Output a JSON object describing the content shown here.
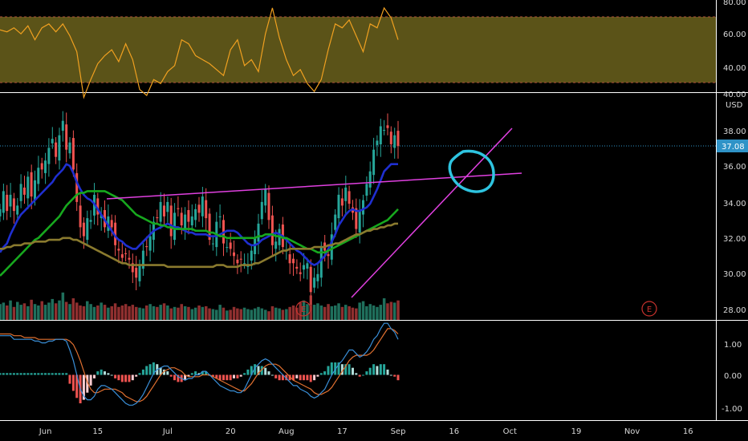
{
  "chart_data": [
    {
      "type": "line",
      "panel": "rsi",
      "ylim": [
        30,
        80
      ],
      "y_ticks": [
        "80.00",
        "60.00",
        "40.00"
      ],
      "band": {
        "upper": 70,
        "lower": 30,
        "color": "#7a6f20"
      },
      "series": [
        {
          "color": "#f0a020",
          "x_days": [
            0,
            2,
            4,
            6,
            8,
            10,
            12,
            14,
            16,
            18,
            20,
            22,
            24,
            26,
            28,
            30,
            32,
            34,
            36,
            38,
            40,
            42,
            44,
            46,
            48,
            50,
            52,
            54,
            56,
            58,
            60,
            62,
            64,
            66,
            68,
            70,
            72,
            74,
            76,
            78,
            80,
            82,
            84,
            86,
            88,
            90,
            92,
            94,
            96,
            98,
            100,
            102,
            104,
            106,
            108,
            110,
            112,
            114
          ],
          "values": [
            65,
            64,
            66,
            63,
            67,
            60,
            66,
            68,
            64,
            68,
            62,
            54,
            31,
            40,
            48,
            52,
            55,
            49,
            58,
            50,
            35,
            32,
            40,
            38,
            44,
            47,
            60,
            58,
            52,
            50,
            48,
            45,
            42,
            55,
            60,
            47,
            50,
            44,
            63,
            76,
            61,
            50,
            42,
            45,
            38,
            34,
            40,
            55,
            68,
            66,
            70,
            62,
            54,
            68,
            66,
            76,
            71,
            60
          ]
        }
      ]
    },
    {
      "type": "candlestick",
      "panel": "price",
      "currency": "USD",
      "ylim": [
        27.5,
        40
      ],
      "y_ticks": [
        "40.00",
        "38.00",
        "36.00",
        "34.00",
        "32.00",
        "30.00",
        "28.00"
      ],
      "last_price": "37.08",
      "x_days": [
        0,
        1,
        2,
        3,
        4,
        5,
        6,
        7,
        8,
        9,
        10,
        11,
        12,
        13,
        14,
        15,
        16,
        17,
        18,
        19,
        20,
        21,
        22,
        23,
        24,
        25,
        26,
        27,
        28,
        29,
        30,
        31,
        32,
        33,
        34,
        35,
        36,
        37,
        38,
        39,
        40,
        41,
        42,
        43,
        44,
        45,
        46,
        47,
        48,
        49,
        50,
        51,
        52,
        53,
        54,
        55,
        56,
        57,
        58,
        59,
        60,
        61,
        62,
        63,
        64,
        65,
        66,
        67,
        68,
        69,
        70,
        71,
        72,
        73,
        74,
        75,
        76,
        77,
        78,
        79,
        80,
        81,
        82,
        83,
        84,
        85,
        86,
        87,
        88,
        89,
        90,
        91,
        92,
        93,
        94,
        95,
        96,
        97,
        98,
        99,
        100,
        101,
        102,
        103,
        104,
        105,
        106,
        107,
        108,
        109,
        110,
        111,
        112,
        113,
        114
      ],
      "close": [
        33.6,
        34.6,
        33.5,
        34.4,
        33.5,
        33.8,
        35.0,
        34.4,
        35.4,
        34.3,
        35.2,
        35.9,
        35.8,
        36.3,
        37.0,
        37.5,
        36.5,
        37.7,
        38.5,
        36.9,
        37.3,
        35.8,
        34.0,
        32.6,
        32.1,
        33.1,
        33.0,
        34.4,
        33.3,
        33.3,
        32.6,
        33.2,
        32.6,
        31.6,
        31.3,
        30.9,
        31.1,
        30.8,
        30.1,
        29.8,
        30.5,
        31.3,
        31.5,
        32.1,
        32.9,
        33.1,
        34.0,
        33.2,
        34.0,
        32.1,
        33.4,
        33.6,
        32.7,
        33.3,
        32.9,
        33.2,
        33.6,
        33.4,
        34.3,
        33.1,
        31.9,
        31.7,
        32.9,
        33.2,
        31.7,
        31.5,
        31.4,
        31.0,
        30.6,
        30.8,
        30.6,
        30.5,
        31.3,
        32.0,
        32.8,
        34.0,
        34.7,
        33.0,
        31.6,
        31.8,
        32.5,
        31.5,
        31.3,
        30.6,
        30.6,
        30.3,
        30.0,
        30.5,
        30.6,
        29.0,
        29.8,
        30.0,
        31.5,
        31.3,
        31.0,
        32.2,
        33.3,
        34.4,
        33.8,
        34.8,
        33.9,
        33.4,
        32.5,
        33.5,
        34.1,
        35.0,
        35.7,
        36.9,
        37.4,
        38.2,
        38.0,
        38.1,
        37.2,
        37.7,
        37.1
      ],
      "volume": [
        22,
        24,
        20,
        27,
        18,
        25,
        21,
        23,
        19,
        28,
        22,
        20,
        26,
        21,
        24,
        29,
        23,
        27,
        38,
        25,
        22,
        30,
        24,
        20,
        19,
        26,
        22,
        18,
        20,
        24,
        21,
        17,
        19,
        23,
        18,
        20,
        22,
        19,
        21,
        18,
        17,
        16,
        20,
        22,
        19,
        18,
        21,
        23,
        20,
        16,
        18,
        17,
        22,
        19,
        18,
        15,
        17,
        20,
        18,
        19,
        16,
        15,
        14,
        21,
        17,
        13,
        14,
        18,
        16,
        15,
        17,
        15,
        14,
        16,
        18,
        16,
        14,
        12,
        19,
        17,
        16,
        14,
        15,
        18,
        20,
        17,
        24,
        27,
        22,
        34,
        21,
        23,
        20,
        18,
        22,
        19,
        20,
        23,
        18,
        21,
        19,
        17,
        16,
        24,
        26,
        19,
        22,
        20,
        18,
        21,
        30,
        23,
        25,
        24,
        27
      ],
      "ma_lines": [
        {
          "color": "#1f2fd0",
          "values": [
            31.2,
            31.5,
            31.7,
            32.2,
            32.6,
            33.0,
            33.3,
            33.5,
            33.7,
            33.9,
            34.1,
            34.3,
            34.5,
            34.7,
            34.9,
            35.1,
            35.4,
            35.6,
            35.8,
            36.1,
            36.0,
            35.6,
            35.1,
            34.7,
            34.4,
            34.2,
            34.1,
            33.9,
            33.6,
            33.3,
            33.0,
            32.7,
            32.4,
            32.1,
            31.9,
            31.8,
            31.6,
            31.5,
            31.4,
            31.4,
            31.6,
            31.8,
            32.0,
            32.2,
            32.4,
            32.5,
            32.6,
            32.7,
            32.8,
            32.7,
            32.6,
            32.6,
            32.5,
            32.4,
            32.3,
            32.3,
            32.2,
            32.2,
            32.2,
            32.2,
            32.1,
            32.1,
            32.1,
            32.2,
            32.3,
            32.4,
            32.4,
            32.4,
            32.3,
            32.1,
            31.9,
            31.7,
            31.6,
            31.6,
            31.7,
            31.9,
            32.0,
            32.1,
            32.2,
            32.3,
            32.2,
            32.1,
            31.9,
            31.7,
            31.5,
            31.3,
            31.2,
            31.0,
            30.8,
            30.6,
            30.5,
            30.6,
            30.8,
            31.0,
            31.4,
            31.8,
            32.2,
            32.7,
            33.0,
            33.3,
            33.5,
            33.6,
            33.5,
            33.5,
            33.6,
            33.7,
            33.9,
            34.3,
            34.7,
            35.2,
            35.7,
            35.9,
            36.1,
            36.1,
            36.1
          ]
        },
        {
          "color": "#17a81e",
          "values": [
            29.9,
            30.1,
            30.3,
            30.5,
            30.7,
            30.9,
            31.1,
            31.3,
            31.5,
            31.7,
            31.9,
            32.0,
            32.2,
            32.4,
            32.6,
            32.8,
            33.0,
            33.2,
            33.5,
            33.8,
            34.0,
            34.2,
            34.4,
            34.5,
            34.5,
            34.6,
            34.6,
            34.6,
            34.6,
            34.6,
            34.6,
            34.5,
            34.4,
            34.3,
            34.2,
            34.1,
            33.9,
            33.7,
            33.5,
            33.3,
            33.2,
            33.1,
            33.0,
            32.9,
            32.8,
            32.8,
            32.7,
            32.7,
            32.6,
            32.6,
            32.5,
            32.5,
            32.5,
            32.5,
            32.5,
            32.5,
            32.4,
            32.4,
            32.4,
            32.4,
            32.3,
            32.3,
            32.2,
            32.1,
            32.1,
            32.0,
            32.0,
            32.0,
            32.0,
            32.0,
            32.0,
            32.0,
            32.0,
            32.0,
            32.1,
            32.1,
            32.2,
            32.2,
            32.2,
            32.1,
            32.1,
            32.0,
            32.0,
            31.9,
            31.8,
            31.7,
            31.6,
            31.5,
            31.4,
            31.4,
            31.3,
            31.2,
            31.2,
            31.2,
            31.3,
            31.4,
            31.5,
            31.6,
            31.7,
            31.8,
            31.9,
            32.0,
            32.1,
            32.2,
            32.3,
            32.4,
            32.5,
            32.6,
            32.7,
            32.8,
            32.9,
            33.0,
            33.2,
            33.4,
            33.6
          ]
        },
        {
          "color": "#8a7a2e",
          "values": [
            31.4,
            31.4,
            31.5,
            31.5,
            31.6,
            31.6,
            31.6,
            31.7,
            31.7,
            31.7,
            31.8,
            31.8,
            31.8,
            31.8,
            31.9,
            31.9,
            31.9,
            31.9,
            32.0,
            32.0,
            32.0,
            31.9,
            31.9,
            31.8,
            31.7,
            31.6,
            31.5,
            31.4,
            31.3,
            31.2,
            31.1,
            31.0,
            30.9,
            30.8,
            30.7,
            30.6,
            30.6,
            30.5,
            30.5,
            30.5,
            30.5,
            30.5,
            30.5,
            30.5,
            30.5,
            30.5,
            30.5,
            30.5,
            30.4,
            30.4,
            30.4,
            30.4,
            30.4,
            30.4,
            30.4,
            30.4,
            30.4,
            30.4,
            30.4,
            30.4,
            30.4,
            30.4,
            30.5,
            30.5,
            30.5,
            30.4,
            30.4,
            30.4,
            30.4,
            30.5,
            30.5,
            30.5,
            30.5,
            30.6,
            30.6,
            30.7,
            30.8,
            30.9,
            31.0,
            31.1,
            31.2,
            31.3,
            31.3,
            31.4,
            31.4,
            31.4,
            31.4,
            31.4,
            31.4,
            31.4,
            31.5,
            31.5,
            31.5,
            31.5,
            31.6,
            31.6,
            31.7,
            31.7,
            31.8,
            31.9,
            32.0,
            32.1,
            32.2,
            32.2,
            32.3,
            32.4,
            32.4,
            32.5,
            32.5,
            32.6,
            32.6,
            32.7,
            32.7,
            32.8,
            32.8
          ]
        }
      ],
      "drawings": {
        "trendlines_color": "#e040e0",
        "circle_color": "#2ec4e0",
        "earnings_markers": [
          "E",
          "E"
        ]
      }
    },
    {
      "type": "bar",
      "panel": "macd",
      "ylim": [
        -1.25,
        1.5
      ],
      "y_ticks": [
        "1.00",
        "0.00",
        "-1.00"
      ],
      "macd_color": "#3a8fd8",
      "signal_color": "#e07030",
      "macd": [
        1.1,
        1.1,
        1.1,
        1.1,
        1.0,
        1.0,
        1.0,
        1.0,
        1.0,
        1.0,
        0.95,
        0.95,
        0.9,
        0.9,
        0.95,
        0.95,
        1.0,
        1.0,
        1.0,
        0.95,
        0.7,
        0.4,
        0.0,
        -0.4,
        -0.6,
        -0.7,
        -0.7,
        -0.6,
        -0.4,
        -0.3,
        -0.3,
        -0.35,
        -0.4,
        -0.5,
        -0.6,
        -0.7,
        -0.8,
        -0.85,
        -0.85,
        -0.8,
        -0.7,
        -0.55,
        -0.35,
        -0.15,
        0.05,
        0.15,
        0.2,
        0.25,
        0.25,
        0.15,
        0.05,
        -0.05,
        -0.1,
        -0.15,
        -0.1,
        -0.1,
        0.0,
        0.0,
        0.1,
        0.1,
        0.0,
        -0.1,
        -0.2,
        -0.3,
        -0.35,
        -0.4,
        -0.45,
        -0.45,
        -0.5,
        -0.5,
        -0.4,
        -0.2,
        0.0,
        0.2,
        0.3,
        0.4,
        0.45,
        0.4,
        0.3,
        0.2,
        0.1,
        0.0,
        -0.1,
        -0.2,
        -0.3,
        -0.3,
        -0.4,
        -0.45,
        -0.5,
        -0.6,
        -0.65,
        -0.6,
        -0.5,
        -0.4,
        -0.2,
        0.0,
        0.15,
        0.3,
        0.4,
        0.55,
        0.7,
        0.7,
        0.6,
        0.5,
        0.55,
        0.65,
        0.8,
        1.0,
        1.1,
        1.3,
        1.45,
        1.45,
        1.3,
        1.2,
        1.0
      ],
      "signal": [
        1.15,
        1.15,
        1.15,
        1.15,
        1.1,
        1.1,
        1.1,
        1.05,
        1.05,
        1.05,
        1.05,
        1.0,
        1.0,
        1.0,
        1.0,
        1.0,
        1.0,
        1.0,
        1.0,
        1.0,
        0.95,
        0.85,
        0.65,
        0.4,
        0.1,
        -0.2,
        -0.4,
        -0.5,
        -0.5,
        -0.45,
        -0.4,
        -0.4,
        -0.4,
        -0.4,
        -0.45,
        -0.5,
        -0.6,
        -0.65,
        -0.7,
        -0.75,
        -0.75,
        -0.7,
        -0.6,
        -0.45,
        -0.3,
        -0.15,
        0.0,
        0.1,
        0.15,
        0.2,
        0.2,
        0.15,
        0.1,
        0.0,
        -0.05,
        -0.05,
        -0.05,
        -0.05,
        0.0,
        0.0,
        0.0,
        -0.05,
        -0.1,
        -0.15,
        -0.2,
        -0.25,
        -0.3,
        -0.35,
        -0.4,
        -0.45,
        -0.45,
        -0.35,
        -0.25,
        -0.1,
        0.05,
        0.15,
        0.25,
        0.3,
        0.3,
        0.3,
        0.25,
        0.15,
        0.05,
        -0.05,
        -0.15,
        -0.2,
        -0.25,
        -0.3,
        -0.35,
        -0.4,
        -0.5,
        -0.55,
        -0.55,
        -0.5,
        -0.45,
        -0.35,
        -0.2,
        -0.05,
        0.1,
        0.25,
        0.4,
        0.5,
        0.55,
        0.55,
        0.55,
        0.55,
        0.6,
        0.7,
        0.85,
        1.0,
        1.15,
        1.3,
        1.3,
        1.25,
        1.15
      ],
      "histogram": [
        0.05,
        0.05,
        0.05,
        0.05,
        0.05,
        0.05,
        0.05,
        0.05,
        0.05,
        0.05,
        0.05,
        0.05,
        0.05,
        0.05,
        0.05,
        0.05,
        0.05,
        0.05,
        0.05,
        0.05,
        -0.25,
        -0.45,
        -0.65,
        -0.8,
        -0.7,
        -0.5,
        -0.3,
        -0.1,
        0.1,
        0.15,
        0.1,
        0.05,
        0.0,
        -0.1,
        -0.15,
        -0.2,
        -0.2,
        -0.2,
        -0.15,
        -0.05,
        0.05,
        0.15,
        0.25,
        0.3,
        0.35,
        0.3,
        0.2,
        0.15,
        0.1,
        -0.05,
        -0.15,
        -0.2,
        -0.2,
        -0.15,
        -0.05,
        0.05,
        0.1,
        0.05,
        0.1,
        0.1,
        0.0,
        -0.05,
        -0.1,
        -0.15,
        -0.15,
        -0.15,
        -0.15,
        -0.1,
        -0.1,
        -0.05,
        0.05,
        0.15,
        0.25,
        0.3,
        0.25,
        0.25,
        0.2,
        0.1,
        0.0,
        -0.1,
        -0.15,
        -0.15,
        -0.15,
        -0.15,
        -0.15,
        -0.1,
        -0.15,
        -0.15,
        -0.15,
        -0.2,
        -0.15,
        -0.05,
        0.05,
        0.1,
        0.25,
        0.35,
        0.35,
        0.35,
        0.3,
        0.3,
        0.3,
        0.2,
        0.05,
        -0.05,
        0.0,
        0.1,
        0.2,
        0.3,
        0.25,
        0.3,
        0.3,
        0.15,
        0.0,
        -0.05,
        -0.15
      ]
    }
  ],
  "time_axis": {
    "day_span": 205,
    "ticks": [
      {
        "label": "Jun",
        "day": 13
      },
      {
        "label": "15",
        "day": 28
      },
      {
        "label": "Jul",
        "day": 48
      },
      {
        "label": "20",
        "day": 66
      },
      {
        "label": "Aug",
        "day": 82
      },
      {
        "label": "17",
        "day": 98
      },
      {
        "label": "Sep",
        "day": 114
      },
      {
        "label": "16",
        "day": 130
      },
      {
        "label": "Oct",
        "day": 146
      },
      {
        "label": "19",
        "day": 165
      },
      {
        "label": "Nov",
        "day": 181
      },
      {
        "label": "16",
        "day": 197
      }
    ]
  }
}
